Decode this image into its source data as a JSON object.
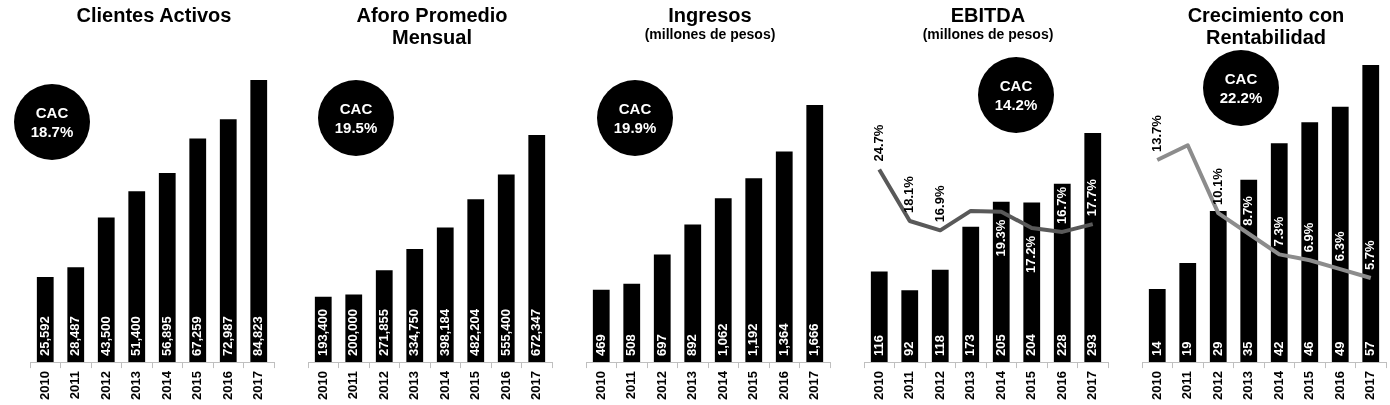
{
  "chart_data": [
    {
      "type": "bar",
      "title": "Clientes Activos",
      "categories": [
        "2010",
        "2011",
        "2012",
        "2013",
        "2014",
        "2015",
        "2016",
        "2017"
      ],
      "tick_labels": "x",
      "annotations": [
        "CAC 18.7%"
      ],
      "series": [
        {
          "color": "#000000",
          "values": [
            25592,
            28487,
            43500,
            51400,
            56895,
            67259,
            72987,
            84823
          ],
          "value_labels": [
            "25,592",
            "28,487",
            "43,500",
            "51,400",
            "56,895",
            "67,259",
            "72,987",
            "84,823"
          ]
        }
      ]
    },
    {
      "type": "bar",
      "title": "Aforo Promedio Mensual",
      "categories": [
        "2010",
        "2011",
        "2012",
        "2013",
        "2014",
        "2015",
        "2016",
        "2017"
      ],
      "tick_labels": "x",
      "annotations": [
        "CAC 19.5%"
      ],
      "series": [
        {
          "color": "#000000",
          "values": [
            193400,
            200000,
            271855,
            334750,
            398184,
            482204,
            555400,
            672347
          ],
          "value_labels": [
            "193,400",
            "200,000",
            "271,855",
            "334,750",
            "398,184",
            "482,204",
            "555,400",
            "672,347"
          ]
        }
      ]
    },
    {
      "type": "bar",
      "title": "Ingresos",
      "subtitle": "(millones de pesos)",
      "categories": [
        "2010",
        "2011",
        "2012",
        "2013",
        "2014",
        "2015",
        "2016",
        "2017"
      ],
      "tick_labels": "x",
      "annotations": [
        "CAC 19.9%"
      ],
      "series": [
        {
          "color": "#000000",
          "values": [
            469,
            508,
            697,
            892,
            1062,
            1192,
            1364,
            1666
          ],
          "value_labels": [
            "469",
            "508",
            "697",
            "892",
            "1,062",
            "1,192",
            "1,364",
            "1,666"
          ]
        }
      ]
    },
    {
      "type": "bar",
      "title": "EBITDA",
      "subtitle": "(millones de pesos)",
      "categories": [
        "2010",
        "2011",
        "2012",
        "2013",
        "2014",
        "2015",
        "2016",
        "2017"
      ],
      "tick_labels": "x",
      "marker": "none",
      "annotations": [
        "CAC 14.2%"
      ],
      "series": [
        {
          "color": "#000000",
          "values": [
            116,
            92,
            118,
            173,
            205,
            204,
            228,
            293
          ],
          "value_labels": [
            "116",
            "92",
            "118",
            "173",
            "205",
            "204",
            "228",
            "293"
          ]
        },
        {
          "type": "line",
          "axis": "y2",
          "color": "#595959",
          "values": [
            24.7,
            18.1,
            16.9,
            19.4,
            19.3,
            17.2,
            16.7,
            17.7
          ],
          "value_labels": [
            "24.7%",
            "18.1%",
            "16.9%",
            null,
            "19.3%",
            "17.2%",
            "16.7%",
            "17.7%"
          ]
        }
      ]
    },
    {
      "type": "bar",
      "title": "Crecimiento con Rentabilidad",
      "categories": [
        "2010",
        "2011",
        "2012",
        "2013",
        "2014",
        "2015",
        "2016",
        "2017"
      ],
      "tick_labels": "x",
      "marker": "none",
      "annotations": [
        "CAC 22.2%"
      ],
      "series": [
        {
          "color": "#000000",
          "values": [
            14,
            19,
            29,
            35,
            42,
            46,
            49,
            57
          ],
          "value_labels": [
            "14",
            "19",
            "29",
            "35",
            "42",
            "46",
            "49",
            "57"
          ]
        },
        {
          "type": "line",
          "axis": "y2",
          "color": "#8c8c8c",
          "values": [
            13.7,
            14.7,
            10.1,
            8.7,
            7.3,
            6.9,
            6.3,
            5.7
          ],
          "value_labels": [
            "13.7%",
            null,
            "10.1%",
            "8.7%",
            "7.3%",
            "6.9%",
            "6.3%",
            "5.7%"
          ]
        }
      ]
    }
  ]
}
